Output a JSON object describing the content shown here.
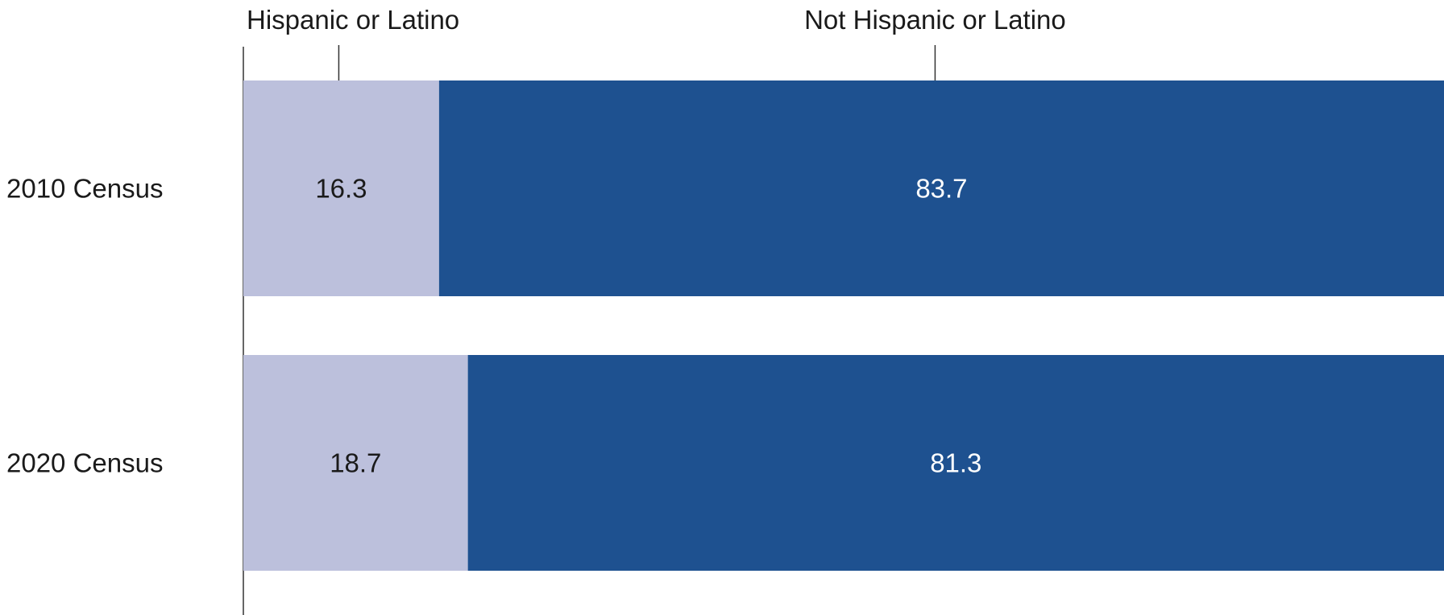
{
  "chart_data": {
    "type": "bar",
    "orientation": "horizontal",
    "stacked": true,
    "normalized_to": 100,
    "categories": [
      "2010 Census",
      "2020 Census"
    ],
    "series": [
      {
        "name": "Hispanic or Latino",
        "values": [
          16.3,
          18.7
        ],
        "color": "#bcc0dc",
        "label_color": "#1a1a1a"
      },
      {
        "name": "Not Hispanic or Latino",
        "values": [
          83.7,
          81.3
        ],
        "color": "#1e5190",
        "label_color": "#ffffff"
      }
    ],
    "data_labels": [
      [
        "16.3",
        "18.7"
      ],
      [
        "83.7",
        "81.3"
      ]
    ],
    "legend_placement": "top",
    "xlim": [
      0,
      100
    ],
    "grid": false
  }
}
